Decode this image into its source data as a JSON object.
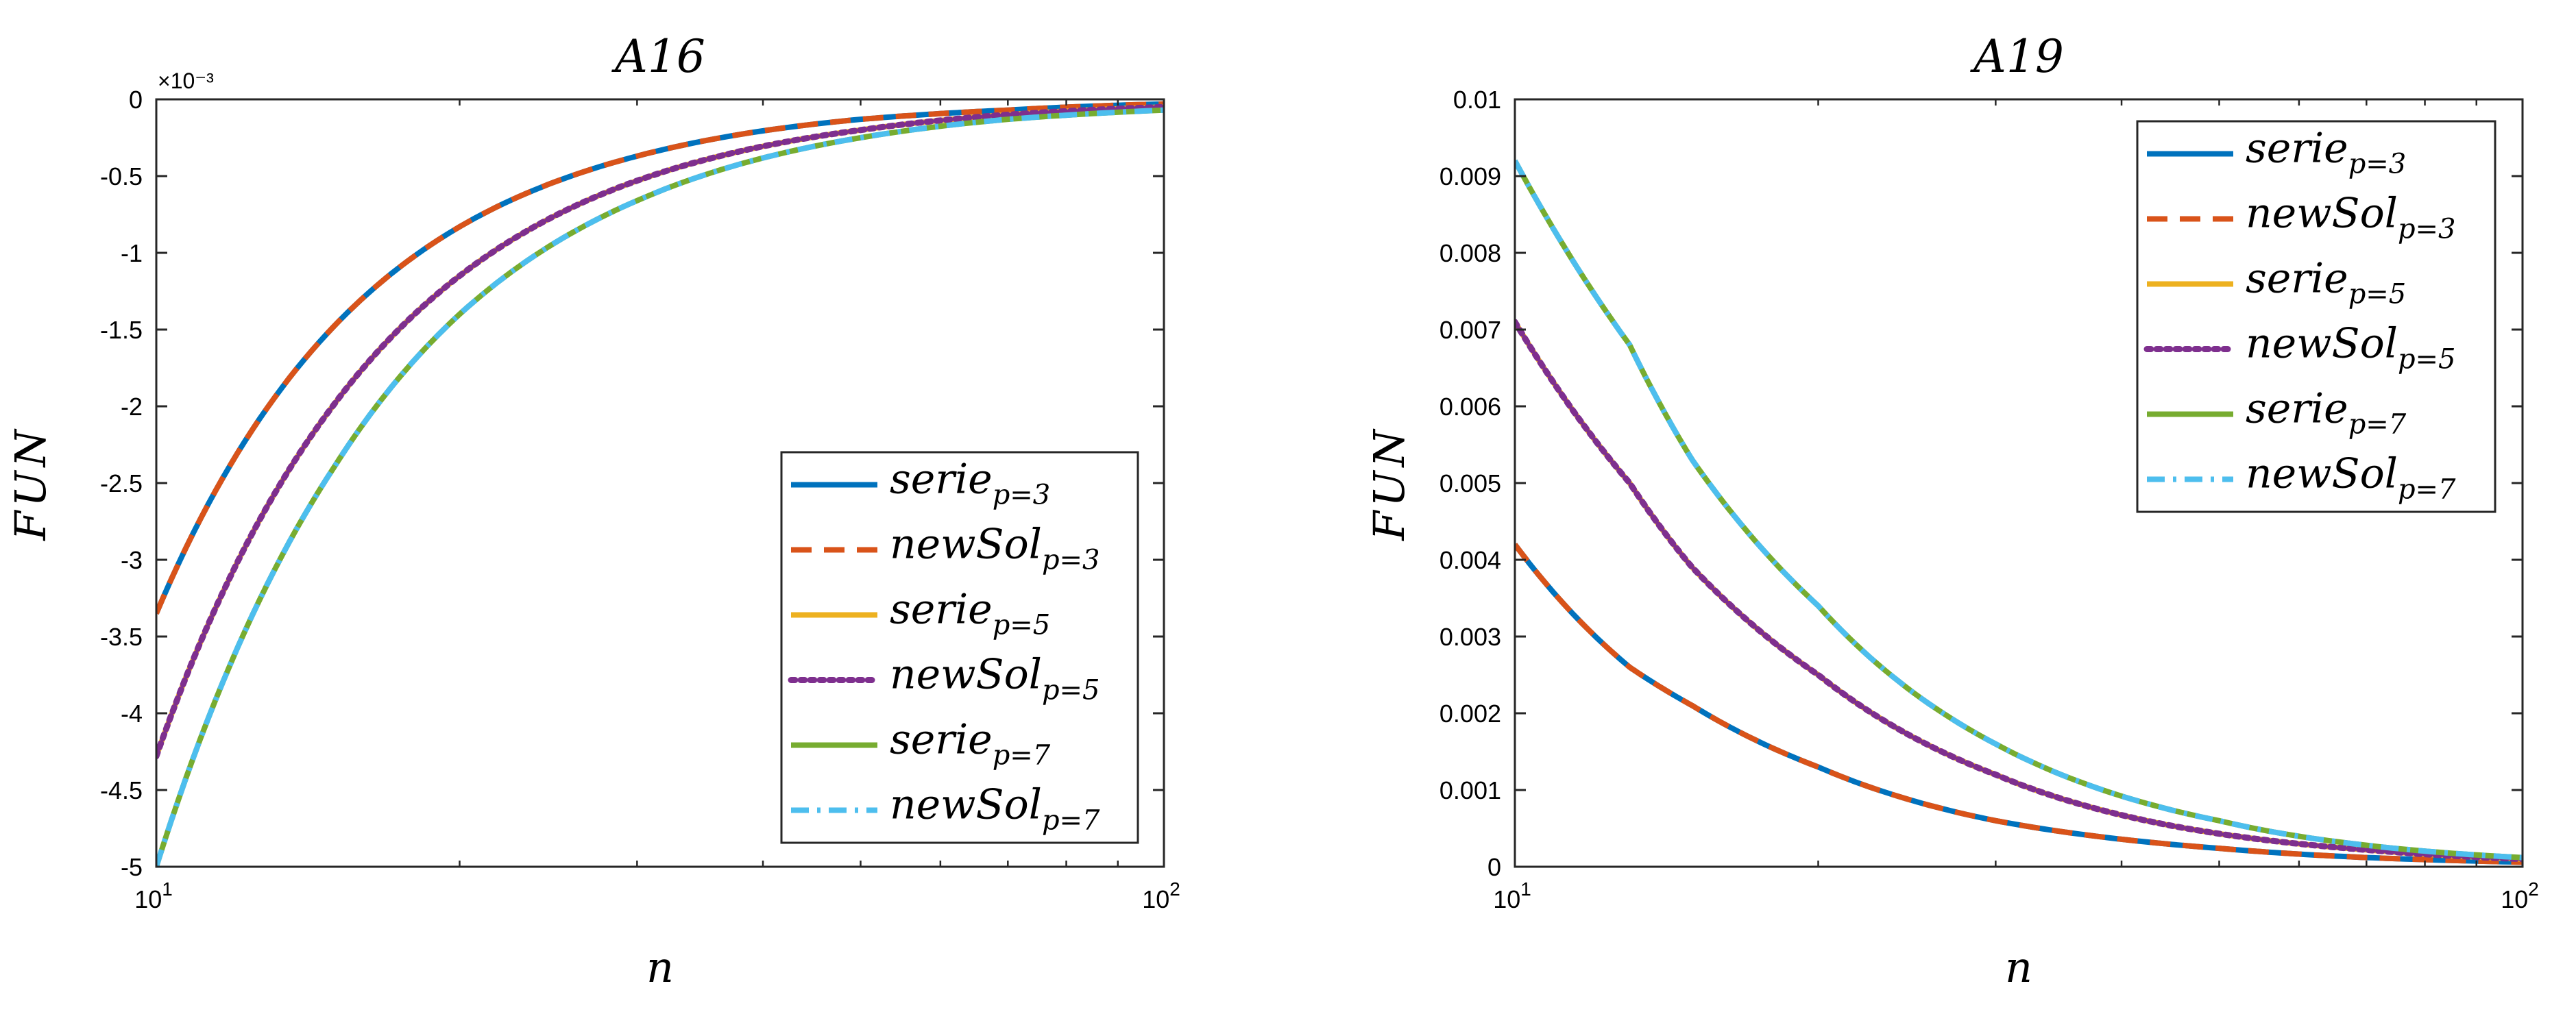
{
  "chart_data": [
    {
      "type": "line",
      "title": "A16",
      "xlabel": "n",
      "ylabel": "FUN",
      "xscale": "log",
      "xlim": [
        10,
        100
      ],
      "ylim": [
        -0.005,
        0
      ],
      "y_exponent_label": "×10⁻³",
      "x_ticks": [
        10,
        100
      ],
      "x_tick_labels": [
        [
          "10",
          "1"
        ],
        [
          "10",
          "2"
        ]
      ],
      "y_ticks": [
        0,
        -0.0005,
        -0.001,
        -0.0015,
        -0.002,
        -0.0025,
        -0.003,
        -0.0035,
        -0.004,
        -0.0045,
        -0.005
      ],
      "y_tick_labels": [
        "0",
        "-0.5",
        "-1",
        "-1.5",
        "-2",
        "-2.5",
        "-3",
        "-3.5",
        "-4",
        "-4.5",
        "-5"
      ],
      "legend_position": "bottom-right",
      "series": [
        {
          "name": "serie",
          "sub": "p=3",
          "color": "#0072BD",
          "style": "solid",
          "points": [
            [
              10,
              -0.00335
            ],
            [
              15,
              -0.00148
            ],
            [
              20,
              -0.00083
            ],
            [
              30,
              -0.00037
            ],
            [
              50,
              -0.00013
            ],
            [
              70,
              -7e-05
            ],
            [
              100,
              -3e-05
            ]
          ]
        },
        {
          "name": "newSol",
          "sub": "p=3",
          "color": "#D95319",
          "style": "dashed",
          "points": [
            [
              10,
              -0.00335
            ],
            [
              15,
              -0.00148
            ],
            [
              20,
              -0.00083
            ],
            [
              30,
              -0.00037
            ],
            [
              50,
              -0.00013
            ],
            [
              70,
              -7e-05
            ],
            [
              100,
              -3e-05
            ]
          ]
        },
        {
          "name": "serie",
          "sub": "p=5",
          "color": "#EDB120",
          "style": "solid",
          "points": [
            [
              10,
              -0.00428
            ],
            [
              15,
              -0.00199
            ],
            [
              20,
              -0.00115
            ],
            [
              30,
              -0.00053
            ],
            [
              50,
              -0.0002
            ],
            [
              70,
              -0.0001
            ],
            [
              100,
              -5e-05
            ]
          ]
        },
        {
          "name": "newSol",
          "sub": "p=5",
          "color": "#7E2F8E",
          "style": "dotted",
          "points": [
            [
              10,
              -0.00428
            ],
            [
              15,
              -0.00199
            ],
            [
              20,
              -0.00115
            ],
            [
              30,
              -0.00053
            ],
            [
              50,
              -0.0002
            ],
            [
              70,
              -0.0001
            ],
            [
              100,
              -5e-05
            ]
          ]
        },
        {
          "name": "serie",
          "sub": "p=7",
          "color": "#77AC30",
          "style": "solid",
          "points": [
            [
              10,
              -0.005
            ],
            [
              15,
              -0.0024
            ],
            [
              20,
              -0.0014
            ],
            [
              30,
              -0.00066
            ],
            [
              50,
              -0.00025
            ],
            [
              70,
              -0.00013
            ],
            [
              100,
              -7e-05
            ]
          ]
        },
        {
          "name": "newSol",
          "sub": "p=7",
          "color": "#4DBEEE",
          "style": "dashdot",
          "points": [
            [
              10,
              -0.005
            ],
            [
              15,
              -0.0024
            ],
            [
              20,
              -0.0014
            ],
            [
              30,
              -0.00066
            ],
            [
              50,
              -0.00025
            ],
            [
              70,
              -0.00013
            ],
            [
              100,
              -7e-05
            ]
          ]
        }
      ]
    },
    {
      "type": "line",
      "title": "A19",
      "xlabel": "n",
      "ylabel": "FUN",
      "xscale": "log",
      "xlim": [
        10,
        100
      ],
      "ylim": [
        0,
        0.01
      ],
      "x_ticks": [
        10,
        100
      ],
      "x_tick_labels": [
        [
          "10",
          "1"
        ],
        [
          "10",
          "2"
        ]
      ],
      "y_ticks": [
        0,
        0.001,
        0.002,
        0.003,
        0.004,
        0.005,
        0.006,
        0.007,
        0.008,
        0.009,
        0.01
      ],
      "y_tick_labels": [
        "0",
        "0.001",
        "0.002",
        "0.003",
        "0.004",
        "0.005",
        "0.006",
        "0.007",
        "0.008",
        "0.009",
        "0.01"
      ],
      "legend_position": "top-right",
      "series": [
        {
          "name": "serie",
          "sub": "p=3",
          "color": "#0072BD",
          "style": "solid",
          "points": [
            [
              10,
              0.0042
            ],
            [
              13,
              0.0026
            ],
            [
              15,
              0.0021
            ],
            [
              20,
              0.0013
            ],
            [
              30,
              0.0006
            ],
            [
              50,
              0.00024
            ],
            [
              70,
              0.00012
            ],
            [
              100,
              6e-05
            ]
          ]
        },
        {
          "name": "newSol",
          "sub": "p=3",
          "color": "#D95319",
          "style": "dashed",
          "points": [
            [
              10,
              0.0042
            ],
            [
              13,
              0.0026
            ],
            [
              15,
              0.0021
            ],
            [
              20,
              0.0013
            ],
            [
              30,
              0.0006
            ],
            [
              50,
              0.00024
            ],
            [
              70,
              0.00012
            ],
            [
              100,
              6e-05
            ]
          ]
        },
        {
          "name": "serie",
          "sub": "p=5",
          "color": "#EDB120",
          "style": "solid",
          "points": [
            [
              10,
              0.0071
            ],
            [
              13,
              0.005
            ],
            [
              15,
              0.0039
            ],
            [
              20,
              0.0025
            ],
            [
              30,
              0.0012
            ],
            [
              50,
              0.00043
            ],
            [
              70,
              0.00022
            ],
            [
              100,
              0.0001
            ]
          ]
        },
        {
          "name": "newSol",
          "sub": "p=5",
          "color": "#7E2F8E",
          "style": "dotted",
          "points": [
            [
              10,
              0.0071
            ],
            [
              13,
              0.005
            ],
            [
              15,
              0.0039
            ],
            [
              20,
              0.0025
            ],
            [
              30,
              0.0012
            ],
            [
              50,
              0.00043
            ],
            [
              70,
              0.00022
            ],
            [
              100,
              0.0001
            ]
          ]
        },
        {
          "name": "serie",
          "sub": "p=7",
          "color": "#77AC30",
          "style": "solid",
          "points": [
            [
              10,
              0.0092
            ],
            [
              13,
              0.0068
            ],
            [
              15,
              0.0053
            ],
            [
              20,
              0.0034
            ],
            [
              30,
              0.0016
            ],
            [
              50,
              0.0006
            ],
            [
              70,
              0.00028
            ],
            [
              100,
              0.00012
            ]
          ]
        },
        {
          "name": "newSol",
          "sub": "p=7",
          "color": "#4DBEEE",
          "style": "dashdot",
          "points": [
            [
              10,
              0.0092
            ],
            [
              13,
              0.0068
            ],
            [
              15,
              0.0053
            ],
            [
              20,
              0.0034
            ],
            [
              30,
              0.0016
            ],
            [
              50,
              0.0006
            ],
            [
              70,
              0.00028
            ],
            [
              100,
              0.00012
            ]
          ]
        }
      ]
    }
  ]
}
